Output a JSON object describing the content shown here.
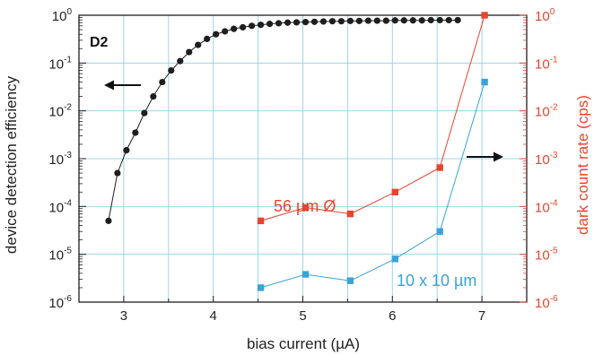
{
  "chart_data": {
    "type": "scatter",
    "xlabel": "bias current (µA)",
    "ylabel_left": "device detection efficiency",
    "ylabel_right": "dark count rate (cps)",
    "xlim": [
      2.5,
      7.5
    ],
    "ylim_left": [
      1e-06,
      1
    ],
    "ylim_right": [
      1e-06,
      1
    ],
    "yscale": "log",
    "grid": true,
    "x_ticks": [
      "3",
      "4",
      "5",
      "6",
      "7"
    ],
    "y_tick_base": "10",
    "y_tick_exponents": [
      "0",
      "-1",
      "-2",
      "-3",
      "-4",
      "-5",
      "-6"
    ],
    "panel_label": "D2",
    "series": [
      {
        "axis": "left",
        "marker": "circle",
        "color": "#1e1e1e",
        "x": [
          2.83,
          2.93,
          3.03,
          3.13,
          3.23,
          3.33,
          3.43,
          3.53,
          3.63,
          3.73,
          3.83,
          3.93,
          4.03,
          4.13,
          4.23,
          4.33,
          4.43,
          4.53,
          4.63,
          4.73,
          4.83,
          4.93,
          5.03,
          5.13,
          5.23,
          5.33,
          5.43,
          5.53,
          5.63,
          5.73,
          5.83,
          5.93,
          6.03,
          6.13,
          6.23,
          6.33,
          6.43,
          6.53,
          6.63,
          6.73
        ],
        "y": [
          5e-05,
          0.0005,
          0.0015,
          0.0035,
          0.009,
          0.02,
          0.04,
          0.07,
          0.11,
          0.17,
          0.24,
          0.32,
          0.4,
          0.46,
          0.52,
          0.56,
          0.6,
          0.63,
          0.66,
          0.68,
          0.7,
          0.71,
          0.72,
          0.73,
          0.74,
          0.75,
          0.75,
          0.76,
          0.76,
          0.77,
          0.77,
          0.77,
          0.78,
          0.78,
          0.78,
          0.78,
          0.79,
          0.79,
          0.79,
          0.79
        ]
      },
      {
        "axis": "right",
        "marker": "square",
        "color": "#e8442e",
        "label": "56 µm Ø",
        "x": [
          4.53,
          5.03,
          5.53,
          6.03,
          6.53,
          7.03
        ],
        "y": [
          5e-05,
          9.5e-05,
          7e-05,
          0.0002,
          0.00065,
          1.0
        ]
      },
      {
        "axis": "right",
        "marker": "square",
        "color": "#3aa3d8",
        "label": "10 x 10 µm",
        "x": [
          4.53,
          5.03,
          5.53,
          6.03,
          6.53,
          7.03
        ],
        "y": [
          2e-06,
          3.8e-06,
          2.8e-06,
          8e-06,
          3e-05,
          0.04
        ]
      }
    ],
    "colors": {
      "left_axis": "#1e1e1e",
      "right_axis": "#e8442e",
      "grid": "#9fd4e4"
    }
  }
}
